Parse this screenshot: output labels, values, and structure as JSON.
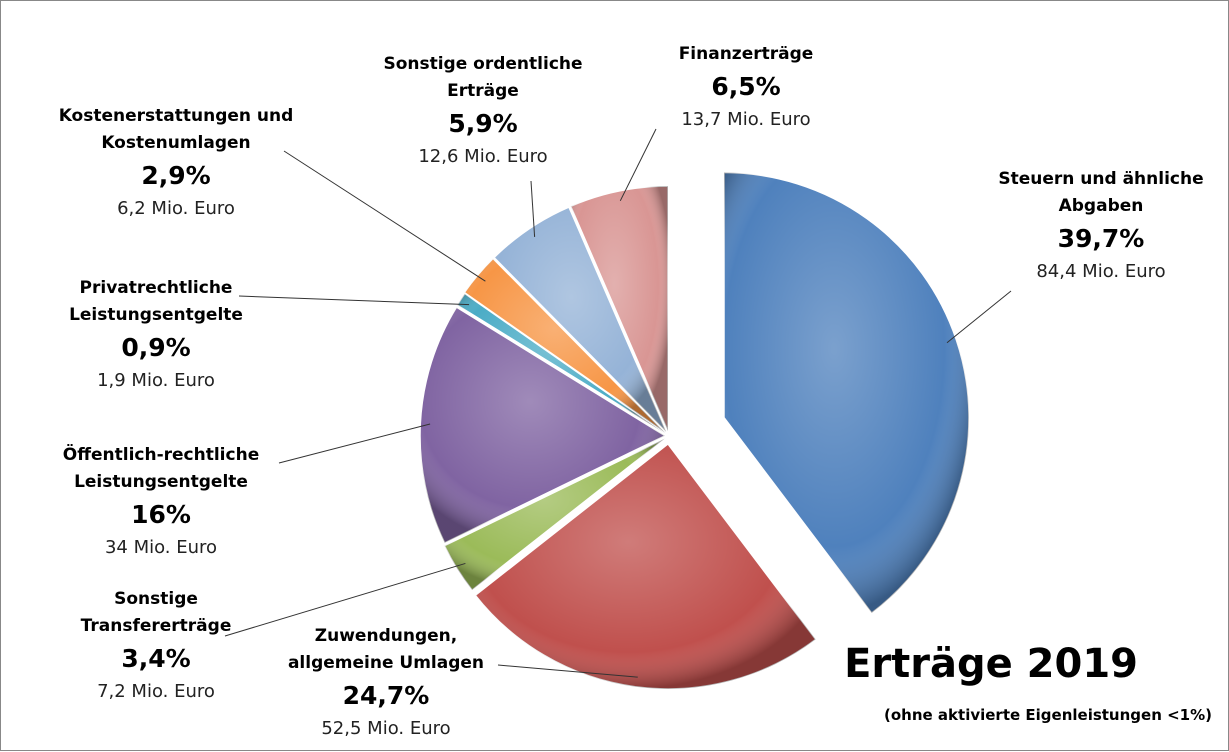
{
  "chart_data": {
    "type": "pie",
    "title": "Erträge 2019",
    "subtitle": "(ohne aktivierte Eigenleistungen <1%)",
    "categories": [
      "Steuern und ähnliche Abgaben",
      "Zuwendungen, allgemeine Umlagen",
      "Sonstige Transfererträge",
      "Öffentlich-rechtliche Leistungsentgelte",
      "Privatrechtliche Leistungsentgelte",
      "Kostenerstattungen und Kostenumlagen",
      "Sonstige ordentliche Erträge",
      "Finanzerträge"
    ],
    "values": [
      39.7,
      24.7,
      3.4,
      16,
      0.9,
      2.9,
      5.9,
      6.5
    ],
    "value_labels": [
      "39,7%",
      "24,7%",
      "3,4%",
      "16%",
      "0,9%",
      "2,9%",
      "5,9%",
      "6,5%"
    ],
    "amounts": [
      "84,4 Mio. Euro",
      "52,5 Mio. Euro",
      "7,2 Mio. Euro",
      "34 Mio. Euro",
      "1,9 Mio. Euro",
      "6,2 Mio. Euro",
      "12,6 Mio. Euro",
      "13,7 Mio. Euro"
    ],
    "colors": [
      "#4f81bd",
      "#c0504d",
      "#9bbb59",
      "#8064a2",
      "#4bacc6",
      "#f79646",
      "#95b3d7",
      "#d99694"
    ]
  }
}
